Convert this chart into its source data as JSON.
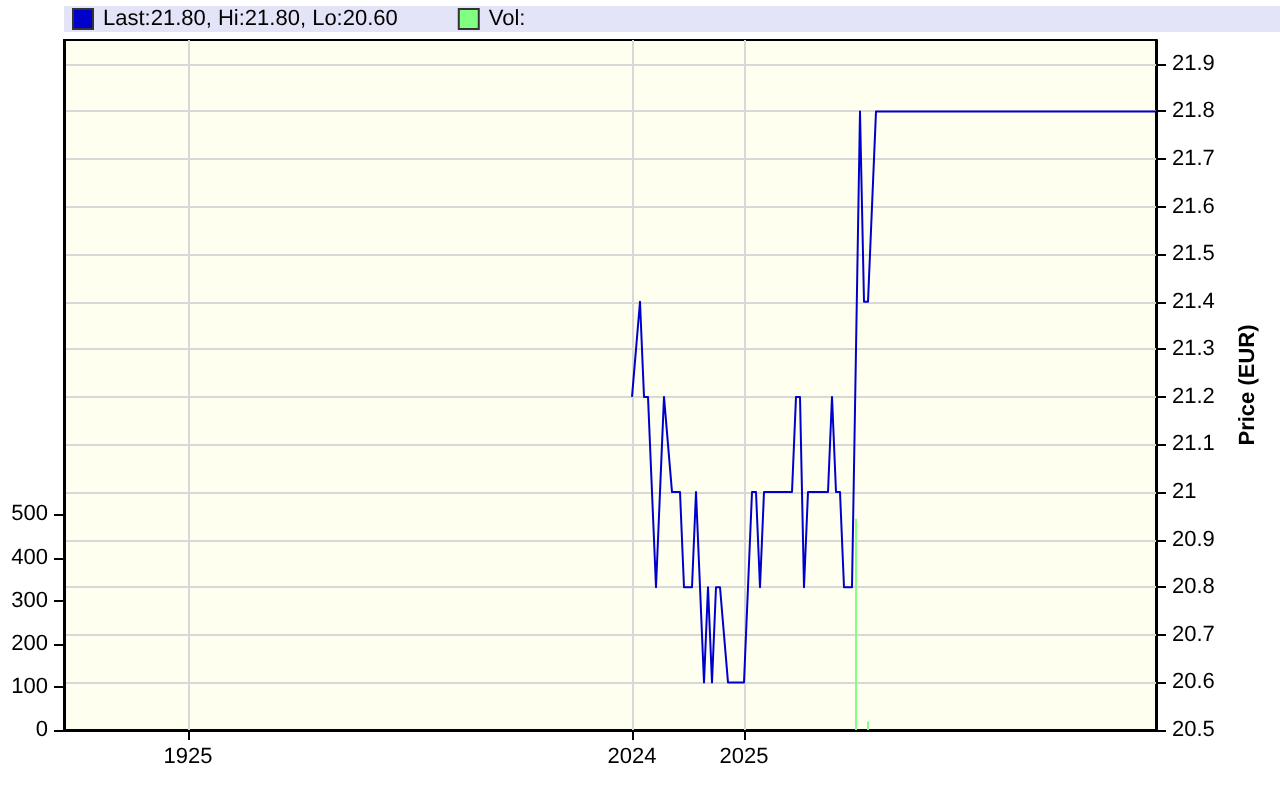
{
  "chart_data": {
    "type": "line",
    "y2label": "Price (EUR)",
    "categories": [
      null,
      null,
      null,
      null,
      null,
      null,
      null,
      null,
      null,
      null,
      null,
      null,
      null,
      null,
      null,
      null,
      null,
      null,
      null,
      null,
      null,
      null,
      null,
      null,
      null,
      null,
      null,
      null,
      null,
      null,
      null,
      "1925",
      null,
      null,
      null,
      null,
      null,
      null,
      null,
      null,
      null,
      null,
      null,
      null,
      null,
      null,
      null,
      null,
      null,
      null,
      null,
      null,
      null,
      null,
      null,
      null,
      null,
      null,
      null,
      null,
      null,
      null,
      null,
      null,
      null,
      null,
      null,
      null,
      null,
      null,
      null,
      null,
      null,
      null,
      null,
      null,
      null,
      null,
      null,
      null,
      null,
      null,
      null,
      null,
      null,
      null,
      null,
      null,
      null,
      null,
      null,
      null,
      null,
      null,
      null,
      null,
      null,
      null,
      null,
      null,
      null,
      null,
      null,
      null,
      null,
      null,
      null,
      null,
      null,
      null,
      null,
      null,
      null,
      null,
      null,
      null,
      null,
      null,
      null,
      null,
      null,
      null,
      null,
      null,
      null,
      null,
      null,
      null,
      null,
      null,
      null,
      null,
      null,
      null,
      null,
      null,
      null,
      null,
      null,
      null,
      null,
      null,
      "2024",
      null,
      null,
      null,
      null,
      null,
      null,
      null,
      null,
      null,
      null,
      null,
      null,
      null,
      null,
      null,
      null,
      null,
      null,
      null,
      null,
      null,
      null,
      null,
      null,
      null,
      null,
      null,
      "2025",
      null,
      null,
      null,
      null,
      null,
      null,
      null,
      null,
      null,
      null,
      null,
      null,
      null,
      null,
      null,
      null,
      null,
      null,
      null,
      null,
      null,
      null,
      null,
      null,
      null,
      null,
      null,
      null,
      null,
      null,
      null,
      null,
      null,
      null,
      null,
      null,
      null,
      null,
      null,
      null,
      null,
      null,
      null,
      null,
      null,
      null,
      null,
      null,
      null,
      null,
      null,
      null,
      null,
      null,
      null,
      null,
      null,
      null,
      null,
      null,
      null,
      null,
      null,
      null,
      null,
      null,
      null,
      null,
      null,
      null,
      null,
      null,
      null,
      null,
      null,
      null,
      null,
      null,
      null,
      null,
      null,
      null,
      null,
      null,
      null,
      null,
      null,
      null,
      null,
      null,
      null,
      null,
      null,
      null,
      null,
      null,
      null,
      null,
      null,
      null,
      null,
      null,
      null
    ],
    "ylim": [
      0,
      1600
    ],
    "yticks": [
      0,
      100,
      200,
      300,
      400,
      500
    ],
    "y2lim": [
      20.5,
      21.95
    ],
    "y2ticks": [
      20.5,
      20.6,
      20.7,
      20.8,
      20.9,
      21,
      21.1,
      21.2,
      21.3,
      21.4,
      21.5,
      21.6,
      21.7,
      21.8,
      21.9
    ],
    "series": [
      {
        "name": "Last:21.80, Hi:21.80, Lo:20.60",
        "color": "#0000cc",
        "axis": "y2",
        "values": [
          null,
          null,
          null,
          null,
          null,
          null,
          null,
          null,
          null,
          null,
          null,
          null,
          null,
          null,
          null,
          null,
          null,
          null,
          null,
          null,
          null,
          null,
          null,
          null,
          null,
          null,
          null,
          null,
          null,
          null,
          null,
          null,
          null,
          null,
          null,
          null,
          null,
          null,
          null,
          null,
          null,
          null,
          null,
          null,
          null,
          null,
          null,
          null,
          null,
          null,
          null,
          null,
          null,
          null,
          null,
          null,
          null,
          null,
          null,
          null,
          null,
          null,
          null,
          null,
          null,
          null,
          null,
          null,
          null,
          null,
          null,
          null,
          null,
          null,
          null,
          null,
          null,
          null,
          null,
          null,
          null,
          null,
          null,
          null,
          null,
          null,
          null,
          null,
          null,
          null,
          null,
          null,
          null,
          null,
          null,
          null,
          null,
          null,
          null,
          null,
          null,
          null,
          null,
          null,
          null,
          null,
          null,
          null,
          null,
          null,
          null,
          null,
          null,
          null,
          null,
          null,
          null,
          null,
          null,
          null,
          null,
          null,
          null,
          null,
          null,
          null,
          null,
          null,
          null,
          null,
          null,
          null,
          null,
          null,
          null,
          null,
          null,
          null,
          null,
          null,
          null,
          null,
          21.2,
          null,
          21.4,
          21.2,
          21.2,
          null,
          20.8,
          null,
          21.2,
          null,
          21.0,
          null,
          21.0,
          20.8,
          null,
          20.8,
          21.0,
          null,
          20.6,
          20.8,
          20.6,
          20.8,
          20.8,
          null,
          20.6,
          null,
          null,
          null,
          20.6,
          null,
          21.0,
          21.0,
          20.8,
          21.0,
          null,
          null,
          null,
          null,
          null,
          null,
          21.0,
          21.2,
          21.2,
          20.8,
          21.0,
          null,
          null,
          null,
          null,
          21.0,
          21.2,
          21.0,
          21.0,
          20.8,
          null,
          20.8,
          null,
          21.8,
          21.4,
          21.4,
          null,
          21.8,
          null,
          null,
          null,
          null,
          null,
          null,
          null,
          null,
          null,
          null,
          null,
          null,
          null,
          null,
          null,
          null,
          null,
          null,
          null,
          null,
          null,
          null,
          null,
          null,
          null,
          null,
          null,
          null,
          null,
          null,
          null,
          null,
          null,
          null,
          null,
          null,
          null,
          null,
          null,
          null,
          null,
          null,
          null,
          null,
          null,
          null,
          null,
          null,
          null,
          null,
          null,
          null,
          null,
          null,
          null,
          null,
          null,
          null,
          null,
          null,
          null,
          null,
          null,
          null,
          null,
          null,
          null,
          null,
          null,
          21.8
        ]
      },
      {
        "name": "Vol:",
        "type": "bar",
        "color": "#80ff80",
        "axis": "y",
        "values": [
          null,
          null,
          null,
          null,
          null,
          null,
          null,
          null,
          null,
          null,
          null,
          null,
          null,
          null,
          null,
          null,
          null,
          null,
          null,
          null,
          null,
          null,
          null,
          null,
          null,
          null,
          null,
          null,
          null,
          null,
          null,
          null,
          null,
          null,
          null,
          null,
          null,
          null,
          null,
          null,
          null,
          null,
          null,
          null,
          null,
          null,
          null,
          null,
          null,
          null,
          null,
          null,
          null,
          null,
          null,
          null,
          null,
          null,
          null,
          null,
          null,
          null,
          null,
          null,
          null,
          null,
          null,
          null,
          null,
          null,
          null,
          null,
          null,
          null,
          null,
          null,
          null,
          null,
          null,
          null,
          null,
          null,
          null,
          null,
          null,
          null,
          null,
          null,
          null,
          null,
          null,
          null,
          null,
          null,
          null,
          null,
          null,
          null,
          null,
          null,
          null,
          null,
          null,
          null,
          null,
          null,
          null,
          null,
          null,
          null,
          null,
          null,
          null,
          null,
          null,
          null,
          null,
          null,
          null,
          null,
          null,
          null,
          null,
          null,
          null,
          null,
          null,
          null,
          null,
          null,
          null,
          null,
          null,
          null,
          null,
          null,
          null,
          null,
          null,
          null,
          null,
          null,
          null,
          null,
          null,
          null,
          null,
          null,
          null,
          null,
          null,
          null,
          null,
          null,
          null,
          null,
          null,
          null,
          null,
          null,
          null,
          null,
          null,
          null,
          null,
          null,
          null,
          null,
          null,
          null,
          null,
          null,
          null,
          null,
          null,
          null,
          null,
          null,
          null,
          null,
          null,
          null,
          null,
          null,
          null,
          null,
          null,
          null,
          null,
          null,
          null,
          null,
          null,
          null,
          null,
          null,
          null,
          null,
          490,
          null,
          null,
          20,
          null,
          null,
          null,
          null,
          null,
          null,
          null,
          null,
          null,
          null,
          null,
          null,
          null,
          null,
          null,
          null,
          null,
          null,
          null,
          null,
          null,
          null,
          null,
          null,
          null,
          null,
          null,
          null,
          null,
          null,
          null,
          null,
          null,
          null,
          null,
          null,
          null,
          null,
          null,
          null,
          null,
          null,
          null,
          null,
          null,
          null,
          null,
          null,
          null,
          null,
          null,
          null,
          null,
          null,
          null,
          null,
          null,
          null,
          null,
          null,
          null,
          null,
          null,
          null,
          null,
          null,
          null,
          null,
          null,
          null,
          null,
          null
        ]
      }
    ],
    "grid": true,
    "legend": "top left",
    "marker": "none",
    "line_style": "solid"
  }
}
